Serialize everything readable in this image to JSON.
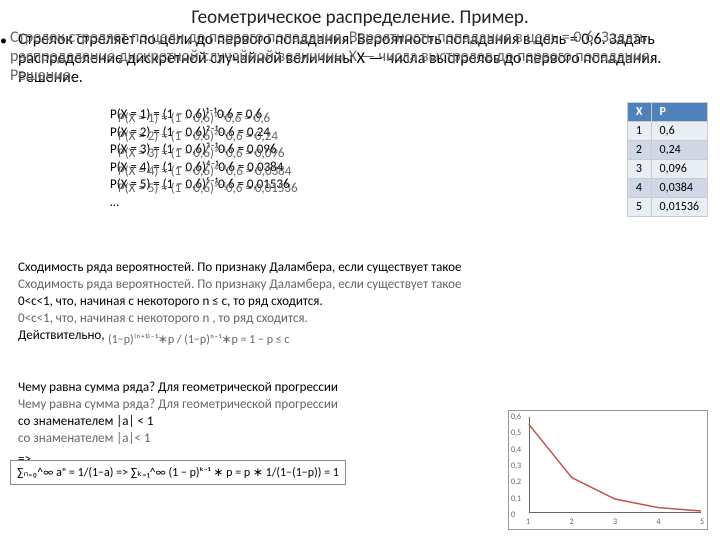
{
  "title": "Геометрическое распределение. Пример.",
  "problem_main": "Стрелок стреляет по цели до первого попадания. Вероятность попадания в цель = 0,6. Задать распределение дискретной случайной величины X — числа выстрелов до первого попадания.",
  "problem_overlay": "Стрелок стреляет по цели до первого попадания. Вероятность попадания в цель = 0,6. Задать распределение дискретной случайной величины X — числа выстрелов до первого попадания.",
  "solution_label": "Решение.",
  "solution_overlay": "Решение.",
  "eqs": {
    "e1": "P(X = 1) = (1 − 0,6)¹⁻¹0,6 = 0,6",
    "e2": "P(X = 2) = (1 − 0,6)²⁻¹0,6 = 0,24",
    "e3": "P(X = 3) = (1 − 0,6)³⁻¹0,6 = 0,096",
    "e4": "P(X = 4) = (1 − 0,6)⁴⁻¹0,6 = 0,0384",
    "e5": "P(X = 5) = (1 − 0,6)⁵⁻¹0,6 = 0,01536",
    "dots": "…"
  },
  "table": {
    "header_x": "X",
    "header_p": "P",
    "rows": [
      {
        "x": "1",
        "p": "0,6"
      },
      {
        "x": "2",
        "p": "0,24"
      },
      {
        "x": "3",
        "p": "0,096"
      },
      {
        "x": "4",
        "p": "0,0384"
      },
      {
        "x": "5",
        "p": "0,01536"
      }
    ]
  },
  "conv1": "Сходимость ряда вероятностей. По признаку Даламбера, если существует такое",
  "conv1_ov": "Сходимость ряда вероятностей. По признаку Даламбера, если существует такое",
  "conv2": "0<c<1, что, начиная с некоторого n            ≤ c, то ряд сходится.",
  "conv2_ov": "0<c<1, что, начиная с некоторого n , то ряд сходится.",
  "conv3": "Действительно,",
  "conv3_ov": "Действительно,",
  "conv_frac": "(1−p)⁽ⁿ⁺¹⁾⁻¹∗p / (1−p)ⁿ⁻¹∗p = 1 − p ≤ c",
  "sum1": "Чему равна сумма ряда? Для геометрической прогрессии",
  "sum1_ov": "Чему равна сумма ряда? Для геометрической прогрессии",
  "sum2": "со знаменателем |a| < 1",
  "sum2_ov": "со знаменателем |a|< 1",
  "arrow": "=>",
  "final": "∑ₙ₌₀^∞ aⁿ = 1/(1−a)  =>  ∑ₖ₌₁^∞ (1 − p)ᵏ⁻¹ ∗ p = p ∗ 1/(1−(1−p)) = 1",
  "chart": {
    "x": [
      1,
      2,
      3,
      4,
      5
    ],
    "y": [
      0.6,
      0.24,
      0.096,
      0.0384,
      0.01536
    ],
    "ylim": [
      0,
      0.65
    ],
    "xlim": [
      1,
      5
    ],
    "line_color": "#c0504d",
    "bg": "#ffffff",
    "yticks": [
      "0",
      "0,1",
      "0,2",
      "0,3",
      "0,4",
      "0,5",
      "0,6"
    ],
    "xticks": [
      "1",
      "2",
      "3",
      "4",
      "5"
    ]
  },
  "bullet": "•"
}
